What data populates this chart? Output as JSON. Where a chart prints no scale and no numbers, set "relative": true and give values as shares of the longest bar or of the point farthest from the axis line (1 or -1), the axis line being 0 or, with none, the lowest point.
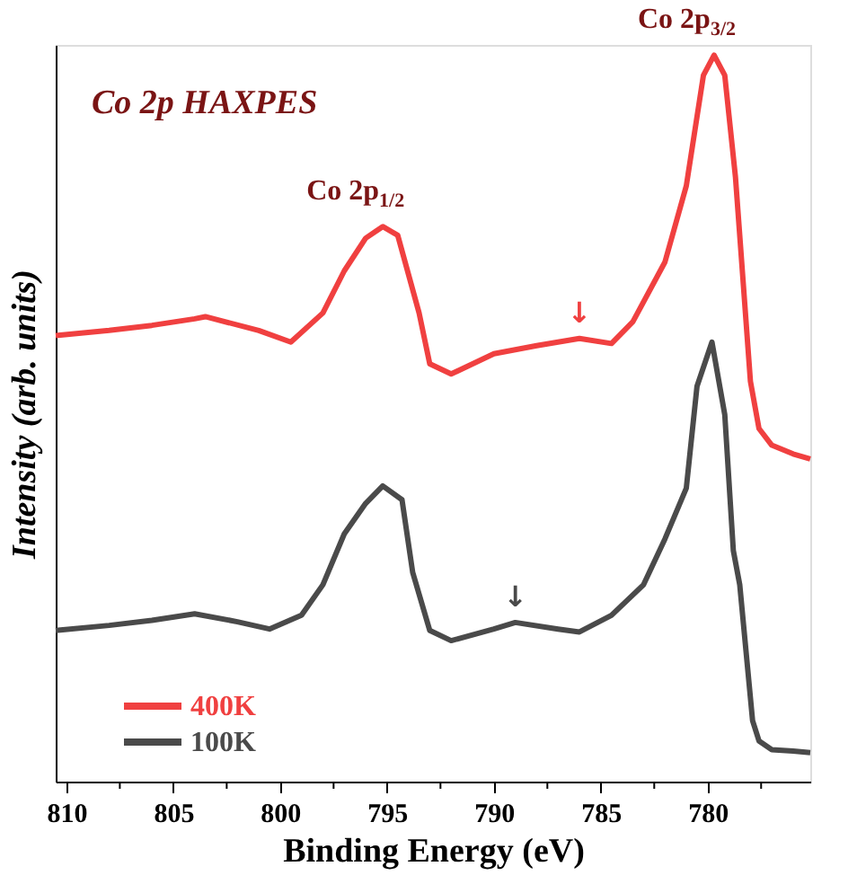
{
  "chart_data": {
    "type": "line",
    "title": "Co 2p HAXPES",
    "xlabel": "Binding Energy (eV)",
    "ylabel": "Intensity (arb. units)",
    "relative": true,
    "xlim": [
      810.5,
      775.2
    ],
    "xticks": [
      810,
      {
        "value": 807.5,
        "label": null
      },
      805,
      {
        "value": 802.5,
        "label": null
      },
      800,
      {
        "value": 797.5,
        "label": null
      },
      795,
      {
        "value": 792.5,
        "label": null
      },
      790,
      {
        "value": 787.5,
        "label": null
      },
      785,
      {
        "value": 782.5,
        "label": null
      },
      780,
      {
        "value": 777.5,
        "label": null
      }
    ],
    "legend": "bottom left",
    "grid": false,
    "marker": "none",
    "line_style": "solid",
    "annotations": [
      {
        "text": "Co 2p$_{1/2}$",
        "x": 795.2,
        "y": 0.764
      },
      {
        "text": "Co 2p$_{3/2}$",
        "x": 779.7,
        "y": 1.0
      },
      {
        "text": "↓",
        "x": 786.0,
        "y": 0.61
      },
      {
        "text": "↓",
        "x": 789.0,
        "y": 0.219
      }
    ],
    "series": [
      {
        "name": "400K",
        "color": "#f04040",
        "x": [
          810.5,
          808,
          806,
          804,
          803.5,
          801,
          799.5,
          798,
          797,
          796,
          795.2,
          794.5,
          793.5,
          793,
          792,
          790,
          788,
          786,
          784.5,
          783.5,
          782,
          781,
          780.2,
          779.7,
          779.2,
          778.7,
          778,
          777.6,
          777,
          776,
          775.2
        ],
        "values": [
          0.614,
          0.621,
          0.628,
          0.637,
          0.64,
          0.621,
          0.605,
          0.645,
          0.703,
          0.748,
          0.764,
          0.752,
          0.645,
          0.575,
          0.561,
          0.589,
          0.6,
          0.61,
          0.603,
          0.633,
          0.715,
          0.82,
          0.972,
          1.0,
          0.972,
          0.832,
          0.551,
          0.486,
          0.463,
          0.451,
          0.444
        ]
      },
      {
        "name": "100K",
        "color": "#4a4a4a",
        "x": [
          810.5,
          808,
          806,
          804,
          802,
          800.5,
          799,
          798,
          797,
          796,
          795.2,
          794.3,
          793.8,
          793,
          792,
          790,
          789,
          787,
          786,
          784.5,
          783,
          782,
          781,
          780.5,
          779.8,
          779.2,
          778.8,
          778.5,
          777.9,
          777.6,
          777,
          776,
          775.2
        ],
        "values": [
          0.208,
          0.215,
          0.222,
          0.231,
          0.22,
          0.21,
          0.229,
          0.271,
          0.341,
          0.383,
          0.407,
          0.388,
          0.288,
          0.208,
          0.194,
          0.21,
          0.219,
          0.21,
          0.206,
          0.229,
          0.271,
          0.334,
          0.404,
          0.544,
          0.605,
          0.505,
          0.318,
          0.271,
          0.084,
          0.056,
          0.044,
          0.042,
          0.04
        ]
      }
    ]
  }
}
